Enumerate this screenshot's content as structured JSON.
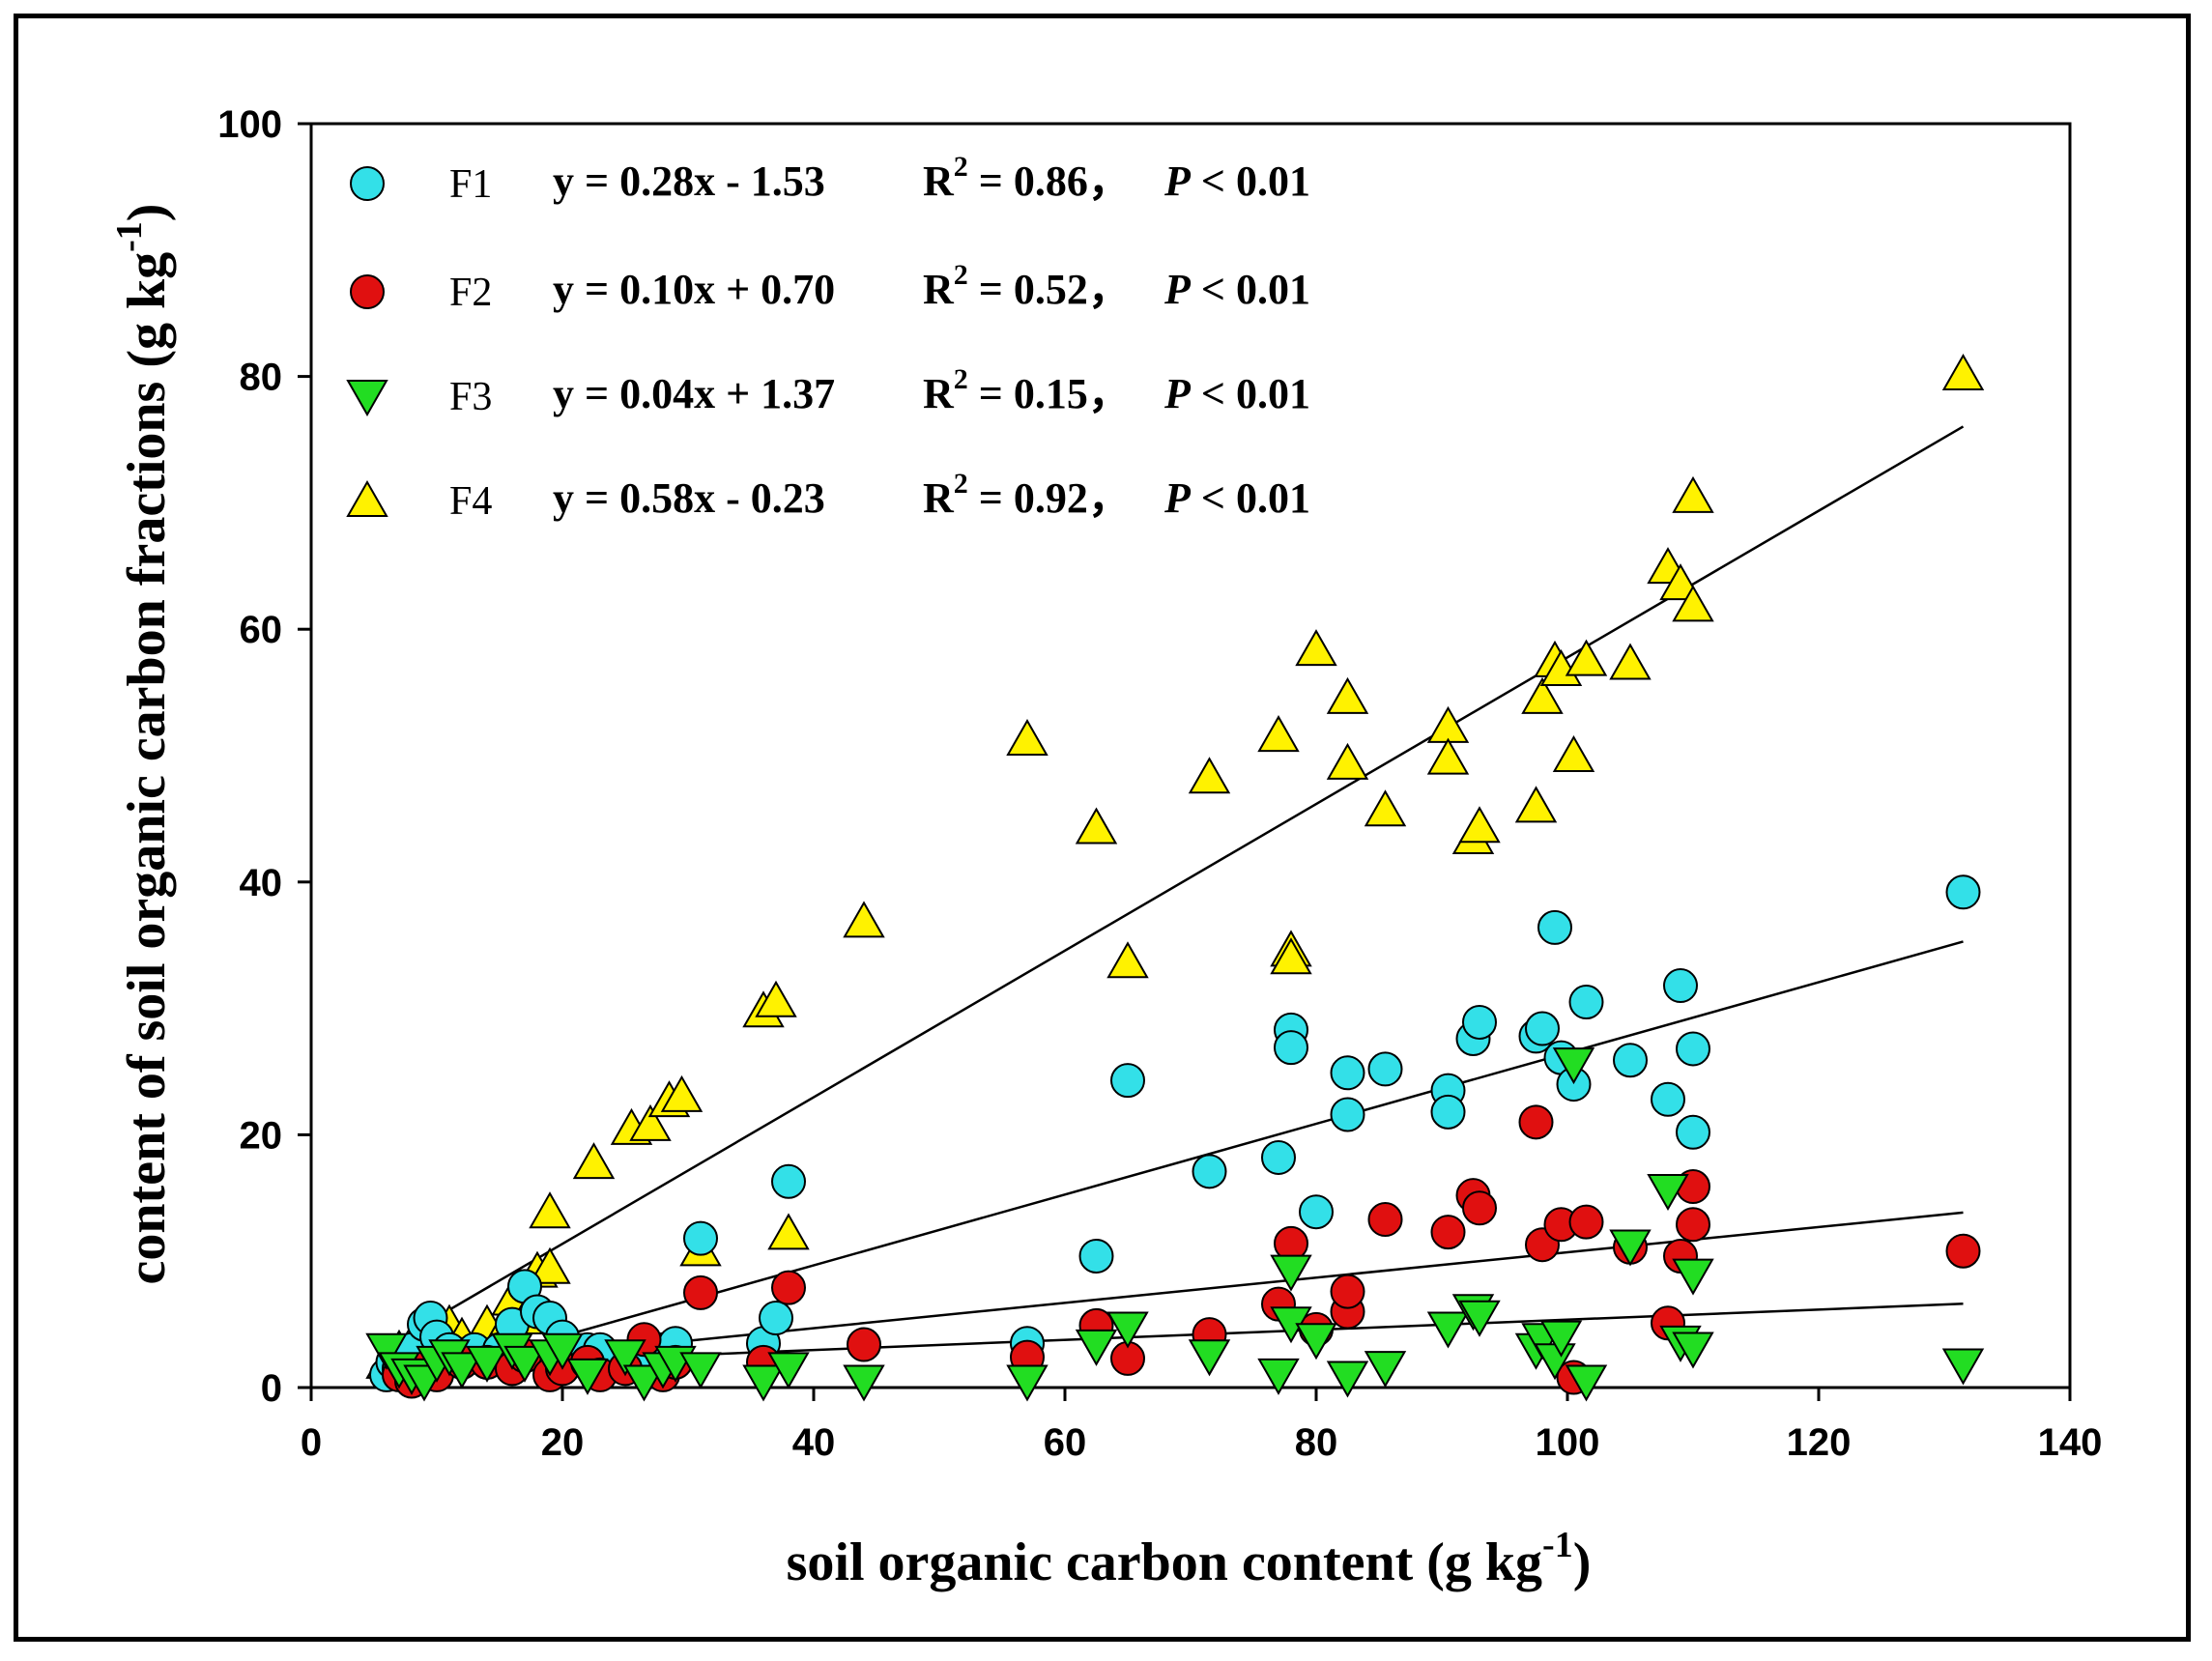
{
  "chart_data": {
    "type": "scatter",
    "xlabel": "soil organic carbon content (g kg",
    "xlabel_sup": "-1",
    "xlabel_close": ")",
    "ylabel": "content of soil organic carbon fractions (g kg",
    "ylabel_sup": "-1",
    "ylabel_close": ")",
    "xlim": [
      0,
      140
    ],
    "ylim": [
      0,
      100
    ],
    "xticks": [
      0,
      20,
      40,
      60,
      80,
      100,
      120,
      140
    ],
    "yticks": [
      0,
      20,
      40,
      60,
      80,
      100
    ],
    "legend_position": "top-left",
    "series": [
      {
        "name": "F1",
        "marker": "circle",
        "color": "#33E0E8",
        "eq": "y = 0.28x - 1.53",
        "r2_label": "R",
        "r2_sup": "2",
        "r2_value": " = 0.86，",
        "p_label": "P",
        "p_value": " < 0.01",
        "fit": {
          "slope": 0.28,
          "intercept": -1.53,
          "x0": 8,
          "x1": 131.5
        },
        "points": [
          [
            6,
            1
          ],
          [
            6.5,
            2
          ],
          [
            7,
            1.5
          ],
          [
            8,
            3
          ],
          [
            9,
            5
          ],
          [
            9.5,
            5.5
          ],
          [
            10,
            4
          ],
          [
            11,
            3
          ],
          [
            12,
            2
          ],
          [
            13,
            3
          ],
          [
            14,
            2
          ],
          [
            15,
            3
          ],
          [
            16,
            5
          ],
          [
            17,
            8
          ],
          [
            18,
            6
          ],
          [
            19,
            5.5
          ],
          [
            20,
            4
          ],
          [
            22,
            3
          ],
          [
            23,
            3
          ],
          [
            26,
            2
          ],
          [
            28,
            3
          ],
          [
            29,
            3.5
          ],
          [
            31,
            11.8
          ],
          [
            36,
            3.5
          ],
          [
            37,
            5.5
          ],
          [
            38,
            16.3
          ],
          [
            57,
            3.5
          ],
          [
            62.5,
            10.4
          ],
          [
            65,
            24.3
          ],
          [
            71.5,
            17.1
          ],
          [
            77,
            18.2
          ],
          [
            78,
            28.3
          ],
          [
            78,
            26.9
          ],
          [
            80,
            13.9
          ],
          [
            82.5,
            24.9
          ],
          [
            82.5,
            21.6
          ],
          [
            85.5,
            25.2
          ],
          [
            90.5,
            23.5
          ],
          [
            90.5,
            21.8
          ],
          [
            92.5,
            27.6
          ],
          [
            93,
            28.9
          ],
          [
            97.5,
            27.8
          ],
          [
            98,
            28.4
          ],
          [
            99,
            36.4
          ],
          [
            99.5,
            26.1
          ],
          [
            100.5,
            24.0
          ],
          [
            101.5,
            30.5
          ],
          [
            105,
            25.9
          ],
          [
            108,
            22.8
          ],
          [
            109,
            31.8
          ],
          [
            110,
            20.2
          ],
          [
            110,
            26.8
          ],
          [
            131.5,
            39.2
          ]
        ]
      },
      {
        "name": "F2",
        "marker": "circle",
        "color": "#E01010",
        "eq": "y = 0.10x + 0.70",
        "r2_label": "R",
        "r2_sup": "2",
        "r2_value": " = 0.52，",
        "p_label": "P",
        "p_value": " < 0.01",
        "fit": {
          "slope": 0.1,
          "intercept": 0.7,
          "x0": 8,
          "x1": 131.5
        },
        "points": [
          [
            7,
            1
          ],
          [
            8,
            0.5
          ],
          [
            9,
            1.5
          ],
          [
            10,
            1
          ],
          [
            12,
            2
          ],
          [
            14,
            2
          ],
          [
            16,
            1.5
          ],
          [
            17,
            2.5
          ],
          [
            19,
            1
          ],
          [
            20,
            1.5
          ],
          [
            22,
            2
          ],
          [
            23,
            1
          ],
          [
            25,
            1.5
          ],
          [
            26.5,
            3.8
          ],
          [
            28,
            1
          ],
          [
            29,
            2
          ],
          [
            31,
            7.5
          ],
          [
            36,
            2
          ],
          [
            38,
            7.9
          ],
          [
            44,
            3.4
          ],
          [
            57,
            2.4
          ],
          [
            62.5,
            4.9
          ],
          [
            65,
            2.3
          ],
          [
            71.5,
            4.2
          ],
          [
            77,
            6.6
          ],
          [
            78,
            11.4
          ],
          [
            80,
            4.6
          ],
          [
            82.5,
            6.0
          ],
          [
            82.5,
            7.6
          ],
          [
            85.5,
            13.3
          ],
          [
            90.5,
            12.3
          ],
          [
            92.5,
            15.2
          ],
          [
            93,
            14.2
          ],
          [
            97.5,
            21.0
          ],
          [
            98,
            11.3
          ],
          [
            99.5,
            12.9
          ],
          [
            100.5,
            0.8
          ],
          [
            101.5,
            13.1
          ],
          [
            105,
            11.1
          ],
          [
            108,
            5.1
          ],
          [
            109,
            10.4
          ],
          [
            110,
            12.9
          ],
          [
            110,
            15.9
          ],
          [
            131.5,
            10.8
          ]
        ]
      },
      {
        "name": "F3",
        "marker": "triangle-down",
        "color": "#22DD22",
        "eq": "y = 0.04x + 1.37",
        "r2_label": "R",
        "r2_sup": "2",
        "r2_value": " = 0.15，",
        "p_label": "P",
        "p_value": " < 0.01",
        "fit": {
          "slope": 0.04,
          "intercept": 1.37,
          "x0": 8,
          "x1": 131.5
        },
        "points": [
          [
            6,
            3
          ],
          [
            7,
            1.5
          ],
          [
            8,
            1
          ],
          [
            9,
            0.5
          ],
          [
            10,
            2
          ],
          [
            11,
            2.5
          ],
          [
            12,
            1.5
          ],
          [
            14,
            2
          ],
          [
            16,
            3
          ],
          [
            17,
            2
          ],
          [
            19,
            2.5
          ],
          [
            20,
            3
          ],
          [
            22,
            1
          ],
          [
            25,
            2.5
          ],
          [
            26.5,
            0.5
          ],
          [
            28,
            1.5
          ],
          [
            29,
            2
          ],
          [
            31,
            1.5
          ],
          [
            36,
            0.5
          ],
          [
            38,
            1.5
          ],
          [
            44,
            0.5
          ],
          [
            57,
            0.5
          ],
          [
            62.5,
            3.3
          ],
          [
            65,
            4.7
          ],
          [
            71.5,
            2.5
          ],
          [
            77,
            1
          ],
          [
            78,
            5.1
          ],
          [
            78,
            9.2
          ],
          [
            80,
            3.8
          ],
          [
            82.5,
            0.8
          ],
          [
            85.5,
            1.6
          ],
          [
            90.5,
            4.7
          ],
          [
            92.5,
            6.1
          ],
          [
            93,
            5.6
          ],
          [
            97.5,
            3.0
          ],
          [
            98,
            3.8
          ],
          [
            99,
            2.2
          ],
          [
            99.5,
            4.0
          ],
          [
            100.5,
            25.6
          ],
          [
            101.5,
            0.5
          ],
          [
            105,
            11.2
          ],
          [
            108,
            15.6
          ],
          [
            109,
            3.6
          ],
          [
            110,
            3.1
          ],
          [
            110,
            8.9
          ],
          [
            131.5,
            1.8
          ]
        ]
      },
      {
        "name": "F4",
        "marker": "triangle-up",
        "color": "#FFF200",
        "eq": "y = 0.58x - 0.23",
        "r2_label": "R",
        "r2_sup": "2",
        "r2_value": " = 0.92，",
        "p_label": "P",
        "p_value": " < 0.01",
        "fit": {
          "slope": 0.58,
          "intercept": -0.23,
          "x0": 8,
          "x1": 131.5
        },
        "points": [
          [
            6,
            2
          ],
          [
            7,
            3
          ],
          [
            8,
            3.5
          ],
          [
            9,
            4
          ],
          [
            10,
            4.5
          ],
          [
            11,
            5
          ],
          [
            12,
            4
          ],
          [
            13,
            3
          ],
          [
            14,
            5
          ],
          [
            15,
            4
          ],
          [
            16,
            7
          ],
          [
            17,
            5.5
          ],
          [
            18,
            9.2
          ],
          [
            19,
            9.5
          ],
          [
            19,
            13.9
          ],
          [
            22.5,
            17.8
          ],
          [
            25.5,
            20.5
          ],
          [
            27,
            20.8
          ],
          [
            28.5,
            22.7
          ],
          [
            29.5,
            23.1
          ],
          [
            31,
            10.9
          ],
          [
            36,
            29.8
          ],
          [
            37,
            30.6
          ],
          [
            38,
            12.2
          ],
          [
            44,
            36.9
          ],
          [
            57,
            51.3
          ],
          [
            62.5,
            44.3
          ],
          [
            65,
            33.7
          ],
          [
            71.5,
            48.3
          ],
          [
            77,
            51.6
          ],
          [
            78,
            34.6
          ],
          [
            78,
            34.0
          ],
          [
            80,
            58.4
          ],
          [
            82.5,
            54.6
          ],
          [
            82.5,
            49.4
          ],
          [
            85.5,
            45.7
          ],
          [
            90.5,
            52.3
          ],
          [
            90.5,
            49.8
          ],
          [
            92.5,
            43.5
          ],
          [
            93,
            44.4
          ],
          [
            97.5,
            46.0
          ],
          [
            98,
            54.6
          ],
          [
            99,
            57.5
          ],
          [
            99.5,
            56.8
          ],
          [
            100.5,
            50.0
          ],
          [
            101.5,
            57.6
          ],
          [
            105,
            57.3
          ],
          [
            108,
            64.9
          ],
          [
            109,
            63.6
          ],
          [
            110,
            70.5
          ],
          [
            110,
            61.9
          ],
          [
            131.5,
            80.2
          ]
        ]
      }
    ]
  }
}
